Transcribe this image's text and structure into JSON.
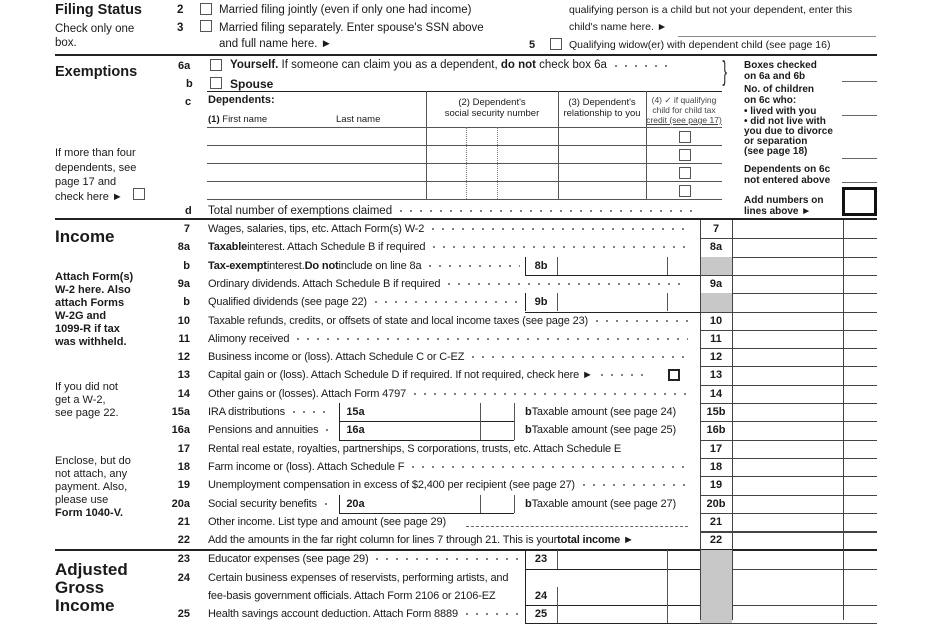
{
  "filing_status": {
    "heading": "Filing Status",
    "note_line1": "Check only one",
    "note_line2": "box.",
    "option2": {
      "num": "2",
      "label": "Married filing jointly (even if only one had income)"
    },
    "option3": {
      "num": "3",
      "label": "Married filing separately. Enter spouse's SSN above",
      "label2": "and full name here. ►"
    },
    "option4_text_line1": "qualifying person is a child but not your dependent, enter this",
    "option4_text_line2": "child's name here. ►",
    "option5": {
      "num": "5",
      "label": "Qualifying widow(er) with dependent child (see page 16)"
    }
  },
  "exemptions": {
    "heading": "Exemptions",
    "line6a_num": "6a",
    "yourself": "Yourself.",
    "yourself_text": " If someone can claim you as a dependent, ",
    "do_not": "do not",
    "yourself_end": " check box 6a",
    "line6b_num": "b",
    "spouse": "Spouse",
    "line6c_num": "c",
    "dependents": "Dependents:",
    "col1_num": "(1)",
    "col1_first": "First name",
    "col1_last": "Last name",
    "col2_line1": "(2) Dependent's",
    "col2_line2": "social security number",
    "col3_line1": "(3) Dependent's",
    "col3_line2": "relationship to  you",
    "col4_line1": "(4) ✓ if qualifying",
    "col4_line2": "child for child tax",
    "col4_line3": "credit (see page 17)",
    "more_note": [
      "If more than four",
      "dependents, see",
      "page 17 and",
      "check here ►"
    ],
    "line6d_num": "d",
    "total_label": "Total number of exemptions claimed",
    "side_boxes_checked": [
      "Boxes checked",
      "on 6a and 6b"
    ],
    "side_children": [
      "No. of children",
      "on 6c who:",
      "• lived with you"
    ],
    "side_not_live": [
      "• did not live with",
      "you due to divorce",
      "or separation",
      "(see page 18)"
    ],
    "side_dependents": [
      "Dependents on 6c",
      "not entered above"
    ],
    "side_add": [
      "Add numbers on",
      "lines above ►"
    ]
  },
  "income": {
    "heading": "Income",
    "attach_note": [
      "Attach Form(s)",
      "W-2 here. Also",
      "attach Forms",
      "W-2G and",
      "1099-R if tax",
      "was withheld."
    ],
    "w2_note": [
      "If you did not",
      "get a W-2,",
      "see page 22."
    ],
    "enclose_note": [
      "Enclose, but do",
      "not attach, any",
      "payment. Also,",
      "please use",
      "Form 1040-V."
    ],
    "rows": [
      {
        "num": "7",
        "text": [
          {
            "t": "Wages, salaries, tips, etc. Attach Form(s) W-2",
            "b": false
          }
        ],
        "right": "7"
      },
      {
        "num": "8a",
        "text": [
          {
            "t": "Taxable",
            "b": true
          },
          {
            "t": " interest. Attach Schedule B if required",
            "b": false
          }
        ],
        "right": "8a"
      },
      {
        "num": "b",
        "text": [
          {
            "t": "Tax-exempt",
            "b": true
          },
          {
            "t": " interest. ",
            "b": false
          },
          {
            "t": "Do not",
            "b": true
          },
          {
            "t": " include on line 8a",
            "b": false
          }
        ],
        "inner": "8b"
      },
      {
        "num": "9a",
        "text": [
          {
            "t": "Ordinary dividends. Attach Schedule B if required",
            "b": false
          }
        ],
        "right": "9a"
      },
      {
        "num": "b",
        "text": [
          {
            "t": "Qualified dividends (see page 22)",
            "b": false
          }
        ],
        "inner": "9b"
      },
      {
        "num": "10",
        "text": [
          {
            "t": "Taxable refunds, credits, or offsets of state and local income taxes (see page 23)",
            "b": false
          }
        ],
        "right": "10"
      },
      {
        "num": "11",
        "text": [
          {
            "t": "Alimony received",
            "b": false
          }
        ],
        "right": "11"
      },
      {
        "num": "12",
        "text": [
          {
            "t": "Business income or (loss). Attach Schedule C or C-EZ",
            "b": false
          }
        ],
        "right": "12"
      },
      {
        "num": "13",
        "text": [
          {
            "t": "Capital gain or (loss). Attach Schedule D if required. If not required, check here ►",
            "b": false
          }
        ],
        "right": "13",
        "checkbox": true
      },
      {
        "num": "14",
        "text": [
          {
            "t": "Other gains or (losses). Attach Form 4797",
            "b": false
          }
        ],
        "right": "14"
      },
      {
        "num": "15a",
        "text": [
          {
            "t": "IRA distributions",
            "b": false
          }
        ],
        "small": "15a",
        "b_text": "b  Taxable amount (see page 24)",
        "right": "15b"
      },
      {
        "num": "16a",
        "text": [
          {
            "t": "Pensions and annuities",
            "b": false
          }
        ],
        "small": "16a",
        "b_text": "b  Taxable amount (see page 25)",
        "right": "16b"
      },
      {
        "num": "17",
        "text": [
          {
            "t": "Rental real estate, royalties, partnerships, S corporations, trusts, etc. Attach Schedule E",
            "b": false
          }
        ],
        "right": "17",
        "nodots": true
      },
      {
        "num": "18",
        "text": [
          {
            "t": "Farm income or (loss). Attach Schedule F",
            "b": false
          }
        ],
        "right": "18"
      },
      {
        "num": "19",
        "text": [
          {
            "t": "Unemployment compensation in excess of $2,400 per recipient (see page 27)",
            "b": false
          }
        ],
        "right": "19"
      },
      {
        "num": "20a",
        "text": [
          {
            "t": "Social security benefits",
            "b": false
          }
        ],
        "small": "20a",
        "b_text": "b  Taxable amount (see page 27)",
        "right": "20b"
      },
      {
        "num": "21",
        "text": [
          {
            "t": "Other income. List type and amount (see page 29)",
            "b": false
          }
        ],
        "right": "21",
        "dashline": true
      },
      {
        "num": "22",
        "text": [
          {
            "t": "Add the amounts in the far right column for lines 7 through 21. This is your ",
            "b": false
          },
          {
            "t": "total income ►",
            "b": true
          }
        ],
        "right": "22",
        "nodots": true
      }
    ]
  },
  "agi": {
    "heading": [
      "Adjusted",
      "Gross",
      "Income"
    ],
    "rows": [
      {
        "num": "23",
        "text": [
          {
            "t": "Educator expenses (see page 29)",
            "b": false
          }
        ],
        "inner": "23"
      },
      {
        "num": "24",
        "text": [
          {
            "t": "Certain business expenses of reservists, performing artists, and",
            "b": false
          }
        ],
        "text2": "fee-basis government officials. Attach Form 2106 or 2106-EZ",
        "inner": "24",
        "tall": true
      },
      {
        "num": "25",
        "text": [
          {
            "t": "Health savings account deduction. Attach Form 8889",
            "b": false
          }
        ],
        "inner": "25"
      }
    ]
  }
}
